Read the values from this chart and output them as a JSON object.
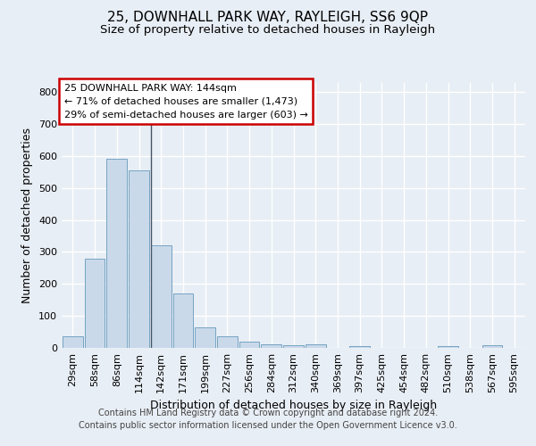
{
  "title_line1": "25, DOWNHALL PARK WAY, RAYLEIGH, SS6 9QP",
  "title_line2": "Size of property relative to detached houses in Rayleigh",
  "xlabel": "Distribution of detached houses by size in Rayleigh",
  "ylabel": "Number of detached properties",
  "bar_color": "#c9d9ea",
  "bar_edge_color": "#6699bb",
  "marker_line_color": "#445566",
  "categories": [
    "29sqm",
    "58sqm",
    "86sqm",
    "114sqm",
    "142sqm",
    "171sqm",
    "199sqm",
    "227sqm",
    "256sqm",
    "284sqm",
    "312sqm",
    "340sqm",
    "369sqm",
    "397sqm",
    "425sqm",
    "454sqm",
    "482sqm",
    "510sqm",
    "538sqm",
    "567sqm",
    "595sqm"
  ],
  "values": [
    37,
    280,
    592,
    555,
    320,
    170,
    63,
    37,
    20,
    12,
    8,
    10,
    0,
    5,
    0,
    0,
    0,
    5,
    0,
    7,
    0
  ],
  "marker_bin_index": 4,
  "annotation_text": "25 DOWNHALL PARK WAY: 144sqm\n← 71% of detached houses are smaller (1,473)\n29% of semi-detached houses are larger (603) →",
  "annotation_box_color": "white",
  "annotation_box_edge_color": "#cc0000",
  "ylim": [
    0,
    830
  ],
  "yticks": [
    0,
    100,
    200,
    300,
    400,
    500,
    600,
    700,
    800
  ],
  "footer_line1": "Contains HM Land Registry data © Crown copyright and database right 2024.",
  "footer_line2": "Contains public sector information licensed under the Open Government Licence v3.0.",
  "background_color": "#e8eef5",
  "plot_bg_color": "#e8eef5",
  "grid_color": "#ffffff",
  "title_fontsize": 11,
  "subtitle_fontsize": 9.5,
  "axis_label_fontsize": 9,
  "tick_fontsize": 8,
  "annotation_fontsize": 8,
  "footer_fontsize": 7
}
